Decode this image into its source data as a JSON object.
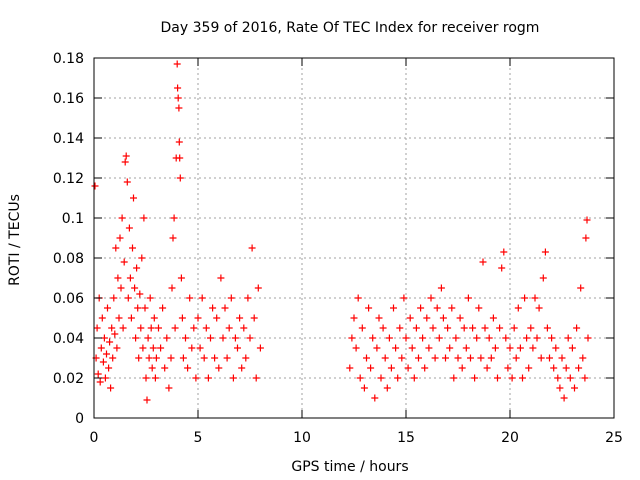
{
  "chart_data": {
    "type": "scatter",
    "title": "Day 359 of 2016, Rate Of TEC Index for receiver rogm",
    "xlabel": "GPS time / hours",
    "ylabel": "ROTI / TECUs",
    "xlim": [
      0,
      25
    ],
    "ylim": [
      0,
      0.18
    ],
    "xticks": [
      0,
      5,
      10,
      15,
      20,
      25
    ],
    "yticks": [
      0,
      0.02,
      0.04,
      0.06,
      0.08,
      0.1,
      0.12,
      0.14,
      0.16,
      0.18
    ],
    "grid": true,
    "marker": "plus",
    "color": "#ff0000",
    "series": [
      {
        "points": [
          [
            0.05,
            0.116
          ],
          [
            0.1,
            0.03
          ],
          [
            0.15,
            0.045
          ],
          [
            0.2,
            0.022
          ],
          [
            0.25,
            0.06
          ],
          [
            0.3,
            0.018
          ],
          [
            0.35,
            0.035
          ],
          [
            0.4,
            0.05
          ],
          [
            0.45,
            0.028
          ],
          [
            0.5,
            0.04
          ],
          [
            0.55,
            0.02
          ],
          [
            0.6,
            0.032
          ],
          [
            0.65,
            0.055
          ],
          [
            0.7,
            0.025
          ],
          [
            0.75,
            0.038
          ],
          [
            0.8,
            0.015
          ],
          [
            0.85,
            0.045
          ],
          [
            0.9,
            0.03
          ],
          [
            0.95,
            0.06
          ],
          [
            1.0,
            0.042
          ],
          [
            1.05,
            0.085
          ],
          [
            1.1,
            0.035
          ],
          [
            1.15,
            0.07
          ],
          [
            1.2,
            0.05
          ],
          [
            1.25,
            0.09
          ],
          [
            1.3,
            0.065
          ],
          [
            1.35,
            0.1
          ],
          [
            1.4,
            0.045
          ],
          [
            1.45,
            0.078
          ],
          [
            1.5,
            0.128
          ],
          [
            1.55,
            0.131
          ],
          [
            1.6,
            0.118
          ],
          [
            1.65,
            0.06
          ],
          [
            1.7,
            0.095
          ],
          [
            1.75,
            0.07
          ],
          [
            1.8,
            0.05
          ],
          [
            1.85,
            0.085
          ],
          [
            1.9,
            0.11
          ],
          [
            1.95,
            0.065
          ],
          [
            2.0,
            0.04
          ],
          [
            2.05,
            0.075
          ],
          [
            2.1,
            0.055
          ],
          [
            2.15,
            0.03
          ],
          [
            2.2,
            0.062
          ],
          [
            2.25,
            0.045
          ],
          [
            2.3,
            0.08
          ],
          [
            2.35,
            0.035
          ],
          [
            2.4,
            0.1
          ],
          [
            2.45,
            0.055
          ],
          [
            2.5,
            0.02
          ],
          [
            2.55,
            0.009
          ],
          [
            2.6,
            0.04
          ],
          [
            2.65,
            0.03
          ],
          [
            2.7,
            0.06
          ],
          [
            2.75,
            0.045
          ],
          [
            2.8,
            0.025
          ],
          [
            2.85,
            0.035
          ],
          [
            2.9,
            0.05
          ],
          [
            2.95,
            0.02
          ],
          [
            3.0,
            0.03
          ],
          [
            3.1,
            0.045
          ],
          [
            3.2,
            0.035
          ],
          [
            3.3,
            0.055
          ],
          [
            3.4,
            0.025
          ],
          [
            3.5,
            0.04
          ],
          [
            3.6,
            0.015
          ],
          [
            3.7,
            0.03
          ],
          [
            3.75,
            0.065
          ],
          [
            3.8,
            0.09
          ],
          [
            3.85,
            0.1
          ],
          [
            3.9,
            0.045
          ],
          [
            3.95,
            0.13
          ],
          [
            4.0,
            0.177
          ],
          [
            4.02,
            0.165
          ],
          [
            4.05,
            0.16
          ],
          [
            4.08,
            0.155
          ],
          [
            4.1,
            0.138
          ],
          [
            4.12,
            0.13
          ],
          [
            4.15,
            0.12
          ],
          [
            4.2,
            0.07
          ],
          [
            4.25,
            0.05
          ],
          [
            4.3,
            0.03
          ],
          [
            4.4,
            0.04
          ],
          [
            4.5,
            0.025
          ],
          [
            4.6,
            0.06
          ],
          [
            4.7,
            0.035
          ],
          [
            4.8,
            0.045
          ],
          [
            4.9,
            0.02
          ],
          [
            5.0,
            0.05
          ],
          [
            5.1,
            0.035
          ],
          [
            5.2,
            0.06
          ],
          [
            5.3,
            0.03
          ],
          [
            5.4,
            0.045
          ],
          [
            5.5,
            0.02
          ],
          [
            5.6,
            0.04
          ],
          [
            5.7,
            0.055
          ],
          [
            5.8,
            0.03
          ],
          [
            5.9,
            0.05
          ],
          [
            6.0,
            0.025
          ],
          [
            6.1,
            0.07
          ],
          [
            6.2,
            0.04
          ],
          [
            6.3,
            0.055
          ],
          [
            6.4,
            0.03
          ],
          [
            6.5,
            0.045
          ],
          [
            6.6,
            0.06
          ],
          [
            6.7,
            0.02
          ],
          [
            6.8,
            0.04
          ],
          [
            6.9,
            0.035
          ],
          [
            7.0,
            0.05
          ],
          [
            7.1,
            0.025
          ],
          [
            7.2,
            0.045
          ],
          [
            7.3,
            0.03
          ],
          [
            7.4,
            0.06
          ],
          [
            7.5,
            0.04
          ],
          [
            7.6,
            0.085
          ],
          [
            7.7,
            0.05
          ],
          [
            7.8,
            0.02
          ],
          [
            7.9,
            0.065
          ],
          [
            8.0,
            0.035
          ],
          [
            12.3,
            0.025
          ],
          [
            12.4,
            0.04
          ],
          [
            12.5,
            0.05
          ],
          [
            12.6,
            0.035
          ],
          [
            12.7,
            0.06
          ],
          [
            12.8,
            0.02
          ],
          [
            12.9,
            0.045
          ],
          [
            13.0,
            0.015
          ],
          [
            13.1,
            0.03
          ],
          [
            13.2,
            0.055
          ],
          [
            13.3,
            0.025
          ],
          [
            13.4,
            0.04
          ],
          [
            13.5,
            0.01
          ],
          [
            13.6,
            0.035
          ],
          [
            13.7,
            0.05
          ],
          [
            13.8,
            0.02
          ],
          [
            13.9,
            0.045
          ],
          [
            14.0,
            0.03
          ],
          [
            14.1,
            0.015
          ],
          [
            14.2,
            0.04
          ],
          [
            14.3,
            0.025
          ],
          [
            14.4,
            0.055
          ],
          [
            14.5,
            0.035
          ],
          [
            14.6,
            0.02
          ],
          [
            14.7,
            0.045
          ],
          [
            14.8,
            0.03
          ],
          [
            14.9,
            0.06
          ],
          [
            15.0,
            0.04
          ],
          [
            15.1,
            0.025
          ],
          [
            15.2,
            0.05
          ],
          [
            15.3,
            0.035
          ],
          [
            15.4,
            0.02
          ],
          [
            15.5,
            0.045
          ],
          [
            15.6,
            0.03
          ],
          [
            15.7,
            0.055
          ],
          [
            15.8,
            0.04
          ],
          [
            15.9,
            0.025
          ],
          [
            16.0,
            0.05
          ],
          [
            16.1,
            0.035
          ],
          [
            16.2,
            0.06
          ],
          [
            16.3,
            0.045
          ],
          [
            16.4,
            0.03
          ],
          [
            16.5,
            0.055
          ],
          [
            16.6,
            0.04
          ],
          [
            16.7,
            0.065
          ],
          [
            16.8,
            0.05
          ],
          [
            16.9,
            0.03
          ],
          [
            17.0,
            0.045
          ],
          [
            17.1,
            0.035
          ],
          [
            17.2,
            0.055
          ],
          [
            17.3,
            0.02
          ],
          [
            17.4,
            0.04
          ],
          [
            17.5,
            0.03
          ],
          [
            17.6,
            0.05
          ],
          [
            17.7,
            0.025
          ],
          [
            17.8,
            0.045
          ],
          [
            17.9,
            0.035
          ],
          [
            18.0,
            0.06
          ],
          [
            18.1,
            0.03
          ],
          [
            18.2,
            0.045
          ],
          [
            18.3,
            0.02
          ],
          [
            18.4,
            0.04
          ],
          [
            18.5,
            0.055
          ],
          [
            18.6,
            0.03
          ],
          [
            18.7,
            0.078
          ],
          [
            18.8,
            0.045
          ],
          [
            18.9,
            0.025
          ],
          [
            19.0,
            0.04
          ],
          [
            19.1,
            0.03
          ],
          [
            19.2,
            0.05
          ],
          [
            19.3,
            0.035
          ],
          [
            19.4,
            0.02
          ],
          [
            19.5,
            0.045
          ],
          [
            19.6,
            0.075
          ],
          [
            19.7,
            0.083
          ],
          [
            19.8,
            0.04
          ],
          [
            19.9,
            0.025
          ],
          [
            20.0,
            0.035
          ],
          [
            20.1,
            0.02
          ],
          [
            20.2,
            0.045
          ],
          [
            20.3,
            0.03
          ],
          [
            20.4,
            0.055
          ],
          [
            20.5,
            0.035
          ],
          [
            20.6,
            0.02
          ],
          [
            20.7,
            0.06
          ],
          [
            20.8,
            0.04
          ],
          [
            20.9,
            0.025
          ],
          [
            21.0,
            0.045
          ],
          [
            21.1,
            0.035
          ],
          [
            21.2,
            0.06
          ],
          [
            21.3,
            0.04
          ],
          [
            21.4,
            0.055
          ],
          [
            21.5,
            0.03
          ],
          [
            21.6,
            0.07
          ],
          [
            21.7,
            0.083
          ],
          [
            21.8,
            0.045
          ],
          [
            21.9,
            0.03
          ],
          [
            22.0,
            0.04
          ],
          [
            22.1,
            0.025
          ],
          [
            22.2,
            0.035
          ],
          [
            22.3,
            0.02
          ],
          [
            22.4,
            0.015
          ],
          [
            22.5,
            0.03
          ],
          [
            22.6,
            0.01
          ],
          [
            22.7,
            0.025
          ],
          [
            22.8,
            0.04
          ],
          [
            22.9,
            0.02
          ],
          [
            23.0,
            0.035
          ],
          [
            23.1,
            0.015
          ],
          [
            23.2,
            0.045
          ],
          [
            23.3,
            0.025
          ],
          [
            23.4,
            0.065
          ],
          [
            23.5,
            0.03
          ],
          [
            23.6,
            0.02
          ],
          [
            23.65,
            0.09
          ],
          [
            23.7,
            0.099
          ],
          [
            23.75,
            0.04
          ]
        ]
      }
    ]
  }
}
